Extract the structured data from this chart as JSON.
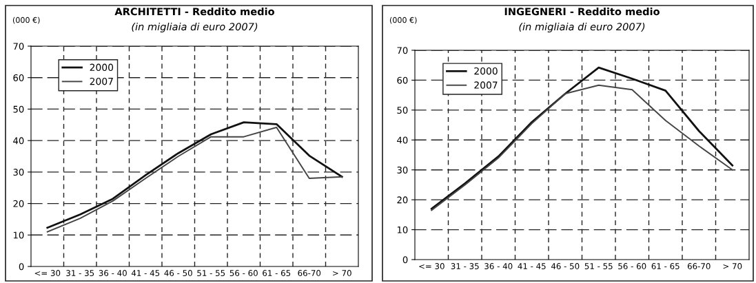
{
  "chart_data": [
    {
      "type": "line",
      "title": "ARCHITETTI - Reddito medio",
      "subtitle": "(in migliaia di euro 2007)",
      "ylabel": "(000 €)",
      "categories": [
        "<= 30",
        "31 - 35",
        "36 - 40",
        "41 - 45",
        "46 - 50",
        "51 - 55",
        "56 - 60",
        "61 - 65",
        "66-70",
        "> 70"
      ],
      "series": [
        {
          "name": "2000",
          "color": "#111111",
          "values": [
            12.3,
            16.5,
            21.5,
            29,
            36,
            42,
            45.8,
            45.2,
            35.2,
            28.5
          ]
        },
        {
          "name": "2007",
          "color": "#444444",
          "values": [
            11,
            15.3,
            20.8,
            28,
            35,
            41.2,
            41.2,
            44.2,
            28,
            28.5
          ]
        }
      ],
      "ylim": [
        0,
        70
      ],
      "yticks": [
        0,
        10,
        20,
        30,
        40,
        50,
        60,
        70
      ],
      "grid": true,
      "line_style": "solid",
      "legend": "top left"
    },
    {
      "type": "line",
      "title": "INGEGNERI - Reddito medio",
      "subtitle": "(in migliaia di euro 2007)",
      "ylabel": "(000 €)",
      "categories": [
        "<= 30",
        "31 - 35",
        "36 - 40",
        "41 - 45",
        "46 - 50",
        "51 - 55",
        "56 - 60",
        "61 - 65",
        "66-70",
        "> 70"
      ],
      "series": [
        {
          "name": "2000",
          "color": "#111111",
          "values": [
            17,
            25.5,
            34.5,
            46,
            55.5,
            64.2,
            60.5,
            56.5,
            43,
            31.5
          ]
        },
        {
          "name": "2007",
          "color": "#444444",
          "values": [
            16.5,
            25,
            34,
            45.5,
            55.5,
            58.3,
            56.8,
            46.5,
            38,
            30
          ]
        }
      ],
      "ylim": [
        0,
        70
      ],
      "yticks": [
        0,
        10,
        20,
        30,
        40,
        50,
        60,
        70
      ],
      "grid": true,
      "line_style": "solid",
      "legend": "top left"
    }
  ]
}
